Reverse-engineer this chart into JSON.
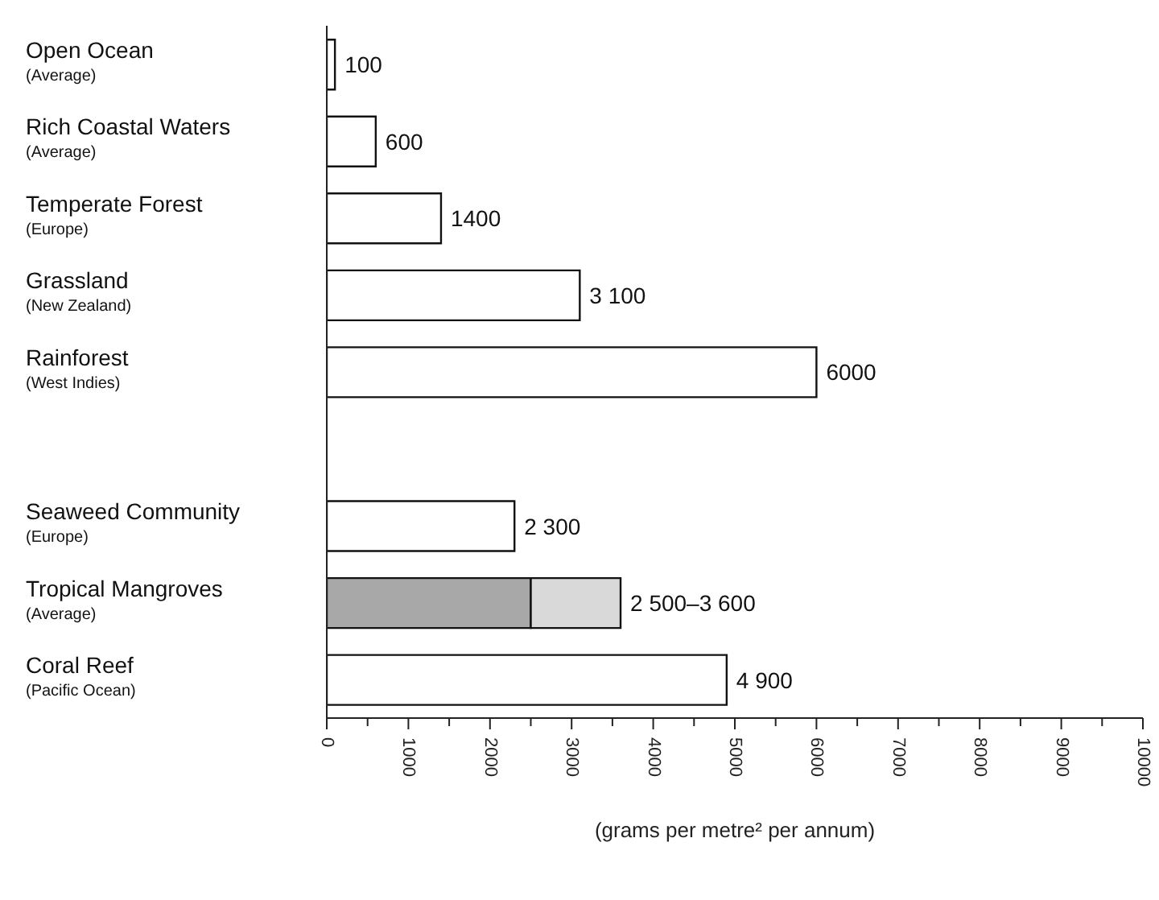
{
  "chart_data": {
    "type": "bar",
    "orientation": "horizontal",
    "stacked": true,
    "categories": [
      "Open Ocean\n(Average)",
      "Rich Coastal Waters\n(Average)",
      "Temperate Forest\n(Europe)",
      "Grassland\n(New Zealand)",
      "Rainforest\n(West Indies)",
      null,
      "Seaweed Community\n(Europe)",
      "Tropical Mangroves\n(Average)",
      "Coral Reef\n(Pacific Ocean)"
    ],
    "series": [
      {
        "colors": [
          "#ffffff",
          "#ffffff",
          "#ffffff",
          "#ffffff",
          "#ffffff",
          "#ffffff",
          "#ffffff",
          "#a8a8a8",
          "#ffffff"
        ],
        "values": [
          100,
          600,
          1400,
          3100,
          6000,
          null,
          2300,
          2500,
          4900
        ],
        "value_labels": [
          "100",
          "600",
          "1400",
          "3 100",
          "6000",
          null,
          "2 300",
          null,
          "4 900"
        ]
      },
      {
        "color": "#d9d9d9",
        "values": [
          null,
          null,
          null,
          null,
          null,
          null,
          null,
          1100,
          null
        ]
      }
    ],
    "annotations": [
      {
        "text": "2 500–3 600",
        "x": 3600,
        "y": "Tropical Mangroves\n(Average)"
      }
    ],
    "xlabel": "(grams per metre² per annum)",
    "xlim": [
      0,
      10000
    ],
    "xticks": [
      0,
      {
        "value": 500,
        "label": null
      },
      1000,
      {
        "value": 1500,
        "label": null
      },
      2000,
      {
        "value": 2500,
        "label": null
      },
      3000,
      {
        "value": 3500,
        "label": null
      },
      4000,
      {
        "value": 4500,
        "label": null
      },
      5000,
      {
        "value": 5500,
        "label": null
      },
      6000,
      {
        "value": 6500,
        "label": null
      },
      7000,
      {
        "value": 7500,
        "label": null
      },
      8000,
      {
        "value": 8500,
        "label": null
      },
      9000,
      {
        "value": 9500,
        "label": null
      },
      10000
    ],
    "grid": false,
    "legend": false
  }
}
